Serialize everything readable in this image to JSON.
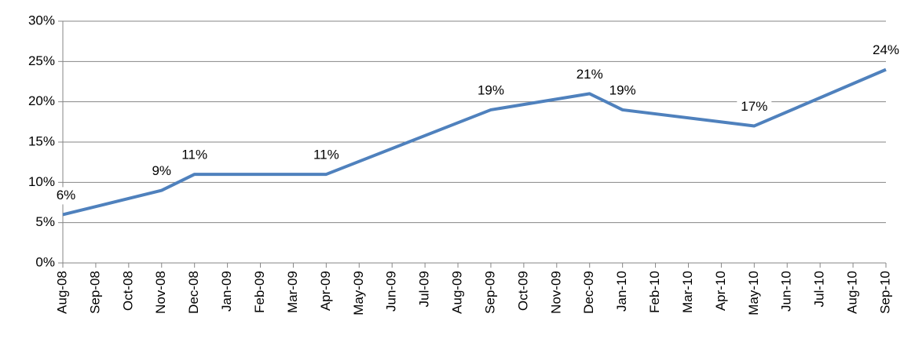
{
  "chart_data": {
    "type": "line",
    "xticks": [
      "Aug-08",
      "Sep-08",
      "Oct-08",
      "Nov-08",
      "Dec-08",
      "Jan-09",
      "Feb-09",
      "Mar-09",
      "Apr-09",
      "May-09",
      "Jun-09",
      "Jul-09",
      "Aug-09",
      "Sep-09",
      "Oct-09",
      "Nov-09",
      "Dec-09",
      "Jan-10",
      "Feb-10",
      "Mar-10",
      "Apr-10",
      "May-10",
      "Jun-10",
      "Jul-10",
      "Aug-10",
      "Sep-10"
    ],
    "x": [
      "Aug-08",
      "Nov-08",
      "Dec-08",
      "Apr-09",
      "Sep-09",
      "Dec-09",
      "Jan-10",
      "May-10",
      "Sep-10"
    ],
    "values": [
      6,
      9,
      11,
      11,
      19,
      21,
      19,
      17,
      24
    ],
    "value_labels": [
      "6%",
      "9%",
      "11%",
      "11%",
      "19%",
      "21%",
      "19%",
      "17%",
      "24%"
    ],
    "color": "#4f81bd",
    "ylim": [
      0,
      30
    ],
    "yticks": [
      {
        "value": 0,
        "label": "0%"
      },
      {
        "value": 5,
        "label": "5%"
      },
      {
        "value": 10,
        "label": "10%"
      },
      {
        "value": 15,
        "label": "15%"
      },
      {
        "value": 20,
        "label": "20%"
      },
      {
        "value": 25,
        "label": "25%"
      },
      {
        "value": 30,
        "label": "30%"
      }
    ],
    "grid": true
  }
}
